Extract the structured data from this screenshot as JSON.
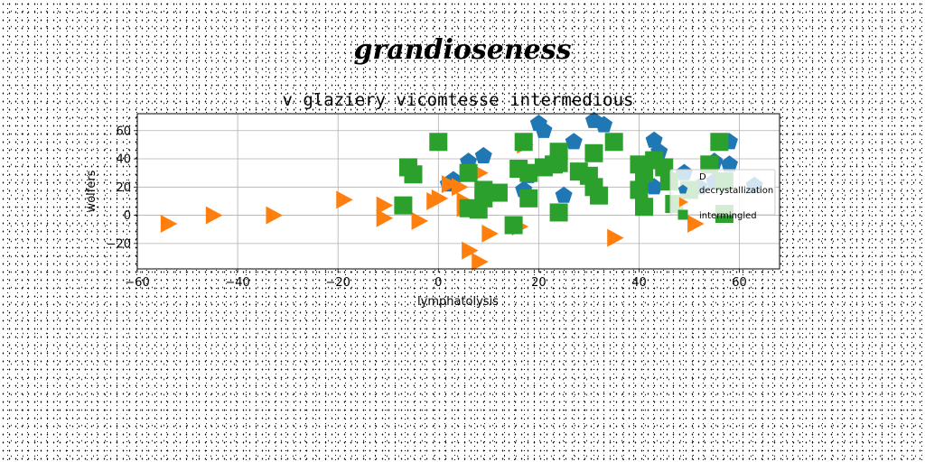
{
  "figure": {
    "suptitle": "grandioseness"
  },
  "chart_data": {
    "type": "scatter",
    "title": "v glaziery vicomtesse intermedious",
    "xlabel": "lymphatolysis",
    "ylabel": "wolfers",
    "xlim": [
      -60,
      68
    ],
    "ylim": [
      -38,
      72
    ],
    "xticks": [
      -60,
      -40,
      -20,
      0,
      20,
      40,
      60
    ],
    "yticks": [
      -20,
      0,
      20,
      40,
      60
    ],
    "grid": true,
    "legend": {
      "title": "D",
      "position": "right"
    },
    "series": [
      {
        "name": "decrystallization",
        "color": "#1f77b4",
        "marker": "pentagon",
        "points": [
          [
            20,
            65
          ],
          [
            21,
            60
          ],
          [
            31,
            67
          ],
          [
            33,
            64
          ],
          [
            27,
            52
          ],
          [
            43,
            53
          ],
          [
            44,
            45
          ],
          [
            58,
            52
          ],
          [
            58,
            36
          ],
          [
            55,
            38
          ],
          [
            49,
            30
          ],
          [
            9,
            42
          ],
          [
            6,
            38
          ],
          [
            2,
            22
          ],
          [
            17,
            18
          ],
          [
            25,
            14
          ],
          [
            43,
            20
          ],
          [
            52,
            20
          ],
          [
            63,
            21
          ],
          [
            55,
            24
          ],
          [
            18,
            28
          ],
          [
            3,
            25
          ]
        ]
      },
      {
        "name": "",
        "color": "#ff7f0e",
        "marker": "triangle-right",
        "points": [
          [
            -54,
            -6
          ],
          [
            -45,
            0
          ],
          [
            -33,
            0
          ],
          [
            -19,
            11
          ],
          [
            -11,
            7
          ],
          [
            -11,
            -2
          ],
          [
            -4,
            -4
          ],
          [
            -1,
            10
          ],
          [
            0,
            12
          ],
          [
            2,
            22
          ],
          [
            4,
            20
          ],
          [
            5,
            10
          ],
          [
            5,
            5
          ],
          [
            6,
            -25
          ],
          [
            8,
            -33
          ],
          [
            10,
            -13
          ],
          [
            16,
            -8
          ],
          [
            17,
            50
          ],
          [
            35,
            -16
          ],
          [
            51,
            -6
          ],
          [
            50,
            17
          ],
          [
            8,
            30
          ]
        ]
      },
      {
        "name": "intermingled",
        "color": "#2ca02c",
        "marker": "square",
        "points": [
          [
            0,
            52
          ],
          [
            17,
            52
          ],
          [
            35,
            52
          ],
          [
            56,
            52
          ],
          [
            24,
            45
          ],
          [
            31,
            44
          ],
          [
            -6,
            34
          ],
          [
            -5,
            29
          ],
          [
            6,
            30
          ],
          [
            16,
            33
          ],
          [
            18,
            30
          ],
          [
            21,
            34
          ],
          [
            24,
            37
          ],
          [
            28,
            31
          ],
          [
            30,
            28
          ],
          [
            31,
            20
          ],
          [
            32,
            14
          ],
          [
            40,
            36
          ],
          [
            41,
            30
          ],
          [
            43,
            39
          ],
          [
            45,
            34
          ],
          [
            40,
            18
          ],
          [
            41,
            6
          ],
          [
            46,
            24
          ],
          [
            47,
            8
          ],
          [
            50,
            18
          ],
          [
            54,
            36
          ],
          [
            57,
            24
          ],
          [
            57,
            1
          ],
          [
            9,
            18
          ],
          [
            9,
            12
          ],
          [
            8,
            4
          ],
          [
            6,
            5
          ],
          [
            18,
            12
          ],
          [
            -7,
            7
          ],
          [
            15,
            -7
          ],
          [
            24,
            2
          ],
          [
            23,
            36
          ],
          [
            12,
            16
          ]
        ]
      }
    ]
  }
}
